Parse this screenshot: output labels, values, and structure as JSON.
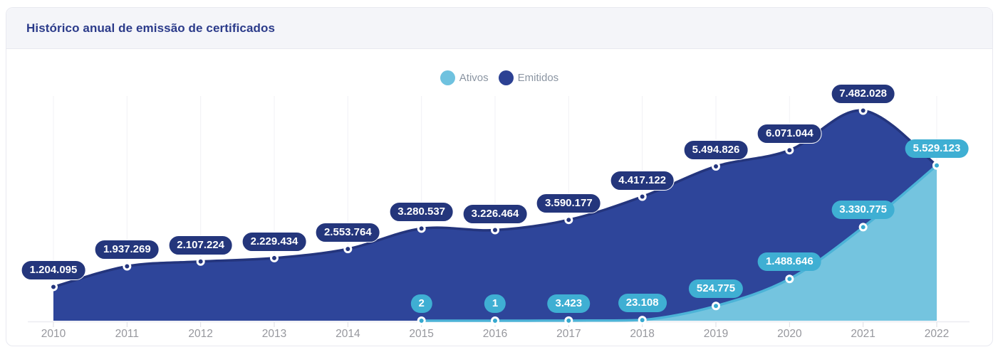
{
  "card": {
    "title": "Histórico anual de emissão de certificados"
  },
  "legend": [
    {
      "label": "Ativos",
      "color": "#6fc2df"
    },
    {
      "label": "Emitidos",
      "color": "#2c4193"
    }
  ],
  "colors": {
    "header_bg": "#f4f5f9",
    "card_border": "#e8e9f0",
    "title_text": "#2b3b8a",
    "gridline": "#f1f1f5",
    "axis_line": "#ececf1",
    "tick": "#dcdde3",
    "x_label_text": "#96979d",
    "legend_text": "#8b95a2"
  },
  "chart_data": {
    "type": "area",
    "title": "Histórico anual de emissão de certificados",
    "xlabel": "",
    "ylabel": "",
    "x": [
      2010,
      2011,
      2012,
      2013,
      2014,
      2015,
      2016,
      2017,
      2018,
      2019,
      2020,
      2021,
      2022
    ],
    "ylim": [
      0,
      8000000
    ],
    "grid": "vertical-per-year",
    "legend_position": "top-center",
    "smooth": true,
    "series": [
      {
        "name": "Emitidos",
        "area_color": "#2e459a",
        "line_color": "#24357d",
        "marker_color": "#24357d",
        "pill_color": "#24367c",
        "values": [
          1204095,
          1937269,
          2107224,
          2229434,
          2553764,
          3280537,
          3226464,
          3590177,
          4417122,
          5494826,
          6071044,
          7482028,
          5529123
        ],
        "labels": [
          "1.204.095",
          "1.937.269",
          "2.107.224",
          "2.229.434",
          "2.553.764",
          "3.280.537",
          "3.226.464",
          "3.590.177",
          "4.417.122",
          "5.494.826",
          "6.071.044",
          "7.482.028",
          null
        ]
      },
      {
        "name": "Ativos",
        "area_color": "#74c4df",
        "line_color": "#4cb3d7",
        "marker_color": "#36a9cf",
        "pill_color": "#3fafd3",
        "values": [
          null,
          null,
          null,
          null,
          null,
          2,
          1,
          3423,
          23108,
          524775,
          1488646,
          3330775,
          5529123
        ],
        "labels": [
          null,
          null,
          null,
          null,
          null,
          "2",
          "1",
          "3.423",
          "23.108",
          "524.775",
          "1.488.646",
          "3.330.775",
          "5.529.123"
        ]
      }
    ]
  }
}
